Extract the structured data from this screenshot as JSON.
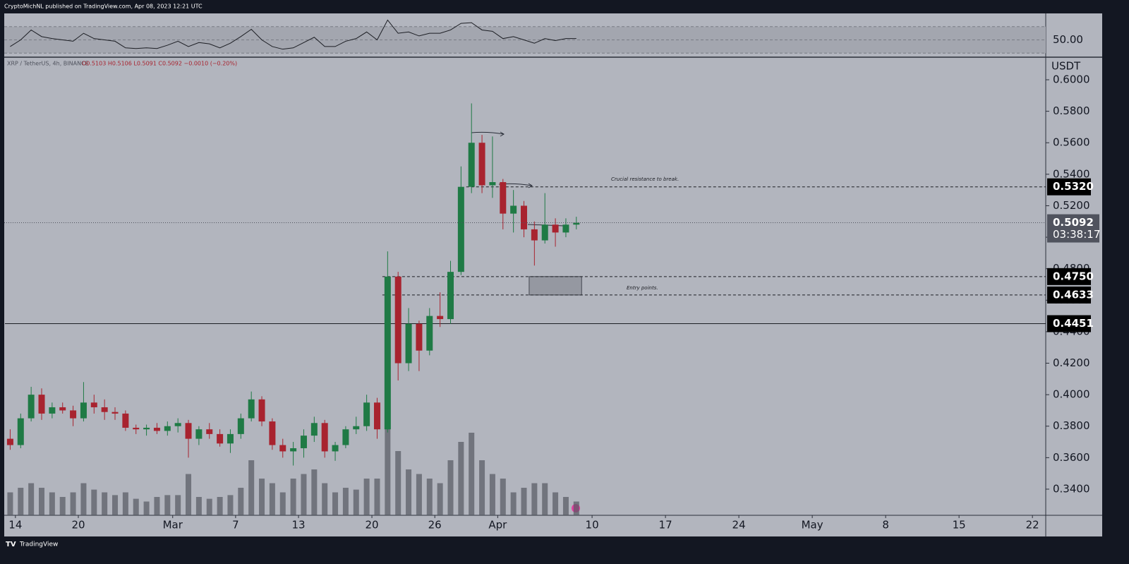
{
  "header": {
    "published": "CryptoMichNL published on TradingView.com, Apr 08, 2023 12:21 UTC",
    "brand": "TradingView"
  },
  "chart_data": [
    {
      "type": "candlestick",
      "title": "XRP / TetherUS, 4h, BINANCE",
      "ohlc_text": "O0.5103 H0.5106 L0.5091 C0.5092 −0.0010 (−0.20%)",
      "unit": "USDT",
      "x": [
        "Feb 13",
        "Feb 14",
        "Feb 15",
        "Feb 16",
        "Feb 17",
        "Feb 18",
        "Feb 19",
        "Feb 20",
        "Feb 21",
        "Feb 22",
        "Feb 23",
        "Feb 24",
        "Feb 25",
        "Feb 26",
        "Feb 27",
        "Feb 28",
        "Mar 1",
        "Mar 2",
        "Mar 3",
        "Mar 4",
        "Mar 5",
        "Mar 6",
        "Mar 7",
        "Mar 8",
        "Mar 9",
        "Mar 10",
        "Mar 11",
        "Mar 12",
        "Mar 13",
        "Mar 14",
        "Mar 15",
        "Mar 16",
        "Mar 17",
        "Mar 18",
        "Mar 19",
        "Mar 20",
        "Mar 21",
        "Mar 22",
        "Mar 23",
        "Mar 24",
        "Mar 25",
        "Mar 26",
        "Mar 27",
        "Mar 28",
        "Mar 29",
        "Mar 30",
        "Mar 31",
        "Apr 1",
        "Apr 2",
        "Apr 3",
        "Apr 4",
        "Apr 5",
        "Apr 6",
        "Apr 7",
        "Apr 8"
      ],
      "open": [
        0.372,
        0.368,
        0.385,
        0.4,
        0.388,
        0.392,
        0.39,
        0.385,
        0.395,
        0.392,
        0.389,
        0.388,
        0.379,
        0.378,
        0.379,
        0.377,
        0.38,
        0.382,
        0.372,
        0.378,
        0.375,
        0.369,
        0.375,
        0.385,
        0.397,
        0.383,
        0.368,
        0.364,
        0.366,
        0.374,
        0.382,
        0.364,
        0.368,
        0.378,
        0.38,
        0.395,
        0.378,
        0.475,
        0.42,
        0.445,
        0.428,
        0.45,
        0.448,
        0.478,
        0.532,
        0.56,
        0.533,
        0.535,
        0.515,
        0.52,
        0.505,
        0.498,
        0.508,
        0.503,
        0.508
      ],
      "high": [
        0.378,
        0.388,
        0.405,
        0.404,
        0.395,
        0.395,
        0.393,
        0.408,
        0.4,
        0.397,
        0.392,
        0.39,
        0.381,
        0.381,
        0.382,
        0.383,
        0.385,
        0.384,
        0.38,
        0.382,
        0.378,
        0.378,
        0.388,
        0.402,
        0.399,
        0.385,
        0.372,
        0.37,
        0.378,
        0.386,
        0.384,
        0.37,
        0.38,
        0.386,
        0.4,
        0.398,
        0.491,
        0.478,
        0.455,
        0.447,
        0.455,
        0.465,
        0.485,
        0.545,
        0.585,
        0.565,
        0.564,
        0.537,
        0.53,
        0.523,
        0.51,
        0.528,
        0.512,
        0.512,
        0.513
      ],
      "low": [
        0.365,
        0.366,
        0.383,
        0.384,
        0.385,
        0.388,
        0.38,
        0.383,
        0.388,
        0.384,
        0.384,
        0.377,
        0.375,
        0.374,
        0.375,
        0.374,
        0.376,
        0.36,
        0.368,
        0.372,
        0.367,
        0.363,
        0.372,
        0.383,
        0.38,
        0.365,
        0.36,
        0.355,
        0.36,
        0.37,
        0.36,
        0.358,
        0.366,
        0.375,
        0.377,
        0.372,
        0.376,
        0.409,
        0.415,
        0.415,
        0.425,
        0.443,
        0.445,
        0.476,
        0.528,
        0.528,
        0.525,
        0.505,
        0.503,
        0.5,
        0.482,
        0.496,
        0.494,
        0.5,
        0.505
      ],
      "close": [
        0.368,
        0.385,
        0.4,
        0.388,
        0.392,
        0.39,
        0.385,
        0.395,
        0.392,
        0.389,
        0.388,
        0.379,
        0.378,
        0.379,
        0.377,
        0.38,
        0.382,
        0.372,
        0.378,
        0.375,
        0.369,
        0.375,
        0.385,
        0.397,
        0.383,
        0.368,
        0.364,
        0.366,
        0.374,
        0.382,
        0.364,
        0.368,
        0.378,
        0.38,
        0.395,
        0.378,
        0.475,
        0.42,
        0.445,
        0.428,
        0.45,
        0.448,
        0.478,
        0.532,
        0.56,
        0.533,
        0.535,
        0.515,
        0.52,
        0.505,
        0.498,
        0.508,
        0.503,
        0.508,
        0.5092
      ],
      "volume": [
        25,
        30,
        35,
        30,
        25,
        20,
        25,
        35,
        28,
        25,
        22,
        25,
        18,
        15,
        20,
        22,
        22,
        45,
        20,
        18,
        20,
        22,
        30,
        60,
        40,
        35,
        25,
        40,
        45,
        50,
        35,
        25,
        30,
        28,
        40,
        40,
        100,
        70,
        50,
        45,
        40,
        35,
        60,
        80,
        90,
        60,
        45,
        40,
        25,
        30,
        35,
        35,
        25,
        20,
        15
      ],
      "up_color": "#1f7a45",
      "down_color": "#a8232f",
      "volume_color": "#555861",
      "xlim": [
        "Feb 13",
        "May 23"
      ],
      "xticks": [
        {
          "value": "Feb 14",
          "label": "14"
        },
        {
          "value": "Feb 20",
          "label": "20"
        },
        {
          "value": "Mar 1",
          "label": "Mar"
        },
        {
          "value": "Mar 7",
          "label": "7"
        },
        {
          "value": "Mar 13",
          "label": "13"
        },
        {
          "value": "Mar 20",
          "label": "20"
        },
        {
          "value": "Mar 26",
          "label": "26"
        },
        {
          "value": "Apr 1",
          "label": "Apr"
        },
        {
          "value": "Apr 10",
          "label": "10"
        },
        {
          "value": "Apr 17",
          "label": "17"
        },
        {
          "value": "Apr 24",
          "label": "24"
        },
        {
          "value": "May 1",
          "label": "May"
        },
        {
          "value": "May 8",
          "label": "8"
        },
        {
          "value": "May 15",
          "label": "15"
        },
        {
          "value": "May 22",
          "label": "22"
        }
      ],
      "ylim": [
        0.3234,
        0.6139
      ],
      "yticks": [
        {
          "value": 0.34,
          "label": "0.3400"
        },
        {
          "value": 0.36,
          "label": "0.3600"
        },
        {
          "value": 0.38,
          "label": "0.3800"
        },
        {
          "value": 0.4,
          "label": "0.4000"
        },
        {
          "value": 0.42,
          "label": "0.4200"
        },
        {
          "value": 0.44,
          "label": "0.4400"
        },
        {
          "value": 0.46,
          "label": "0.4600"
        },
        {
          "value": 0.48,
          "label": "0.4800"
        },
        {
          "value": 0.5,
          "label": "0.5000"
        },
        {
          "value": 0.52,
          "label": "0.5200"
        },
        {
          "value": 0.54,
          "label": "0.5400"
        },
        {
          "value": 0.56,
          "label": "0.5600"
        },
        {
          "value": 0.58,
          "label": "0.5800"
        },
        {
          "value": 0.6,
          "label": "0.6000"
        }
      ],
      "levels": [
        {
          "value": 0.532,
          "label": "0.5320",
          "style": "dashed",
          "from": "Mar 29"
        },
        {
          "value": 0.475,
          "label": "0.4750",
          "style": "dashed",
          "from": "Mar 21"
        },
        {
          "value": 0.4633,
          "label": "0.4633",
          "style": "dashed",
          "from": "Mar 21"
        },
        {
          "value": 0.4451,
          "label": "0.4451",
          "style": "solid",
          "from": "Feb 13"
        }
      ],
      "zone": {
        "x": [
          "Apr 4",
          "Apr 9"
        ],
        "top": 0.475,
        "bottom": 0.4633
      },
      "last_price": {
        "value": 0.5092,
        "label": "0.5092",
        "countdown": "03:38:17"
      },
      "annotations": [
        "Crucial resistance to break.",
        "Entry points."
      ]
    },
    {
      "type": "line",
      "x": [
        "Feb 13",
        "Feb 14",
        "Feb 15",
        "Feb 16",
        "Feb 17",
        "Feb 18",
        "Feb 19",
        "Feb 20",
        "Feb 21",
        "Feb 22",
        "Feb 23",
        "Feb 24",
        "Feb 25",
        "Feb 26",
        "Feb 27",
        "Feb 28",
        "Mar 1",
        "Mar 2",
        "Mar 3",
        "Mar 4",
        "Mar 5",
        "Mar 6",
        "Mar 7",
        "Mar 8",
        "Mar 9",
        "Mar 10",
        "Mar 11",
        "Mar 12",
        "Mar 13",
        "Mar 14",
        "Mar 15",
        "Mar 16",
        "Mar 17",
        "Mar 18",
        "Mar 19",
        "Mar 20",
        "Mar 21",
        "Mar 22",
        "Mar 23",
        "Mar 24",
        "Mar 25",
        "Mar 26",
        "Mar 27",
        "Mar 28",
        "Mar 29",
        "Mar 30",
        "Mar 31",
        "Apr 1",
        "Apr 2",
        "Apr 3",
        "Apr 4",
        "Apr 5",
        "Apr 6",
        "Apr 7",
        "Apr 8"
      ],
      "values": [
        40,
        50,
        65,
        55,
        52,
        50,
        48,
        60,
        52,
        50,
        48,
        38,
        37,
        38,
        37,
        42,
        48,
        40,
        46,
        44,
        38,
        45,
        55,
        66,
        50,
        40,
        36,
        38,
        46,
        54,
        40,
        40,
        48,
        52,
        62,
        50,
        80,
        60,
        62,
        56,
        60,
        60,
        65,
        75,
        76,
        65,
        63,
        52,
        55,
        50,
        45,
        52,
        49,
        52,
        52
      ],
      "color": "#1c1e24",
      "ylim": [
        25,
        90
      ],
      "yticks": [
        {
          "value": 50,
          "label": "50.00"
        }
      ],
      "bands": [
        30,
        70
      ]
    }
  ]
}
